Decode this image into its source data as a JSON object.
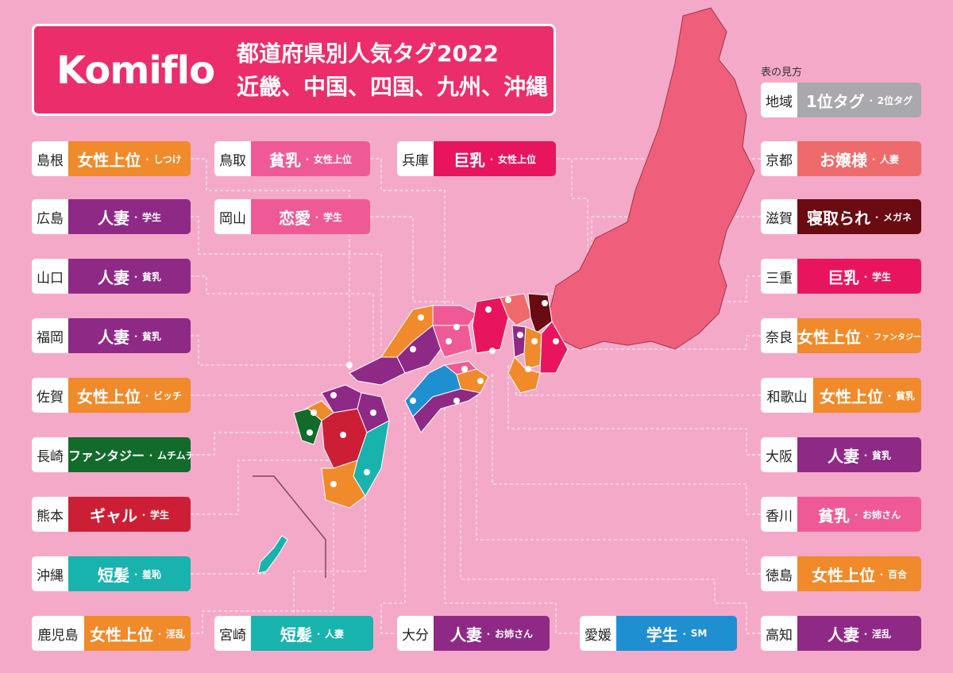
{
  "header": {
    "brand": "Komiflo",
    "title_line1": "都道府県別人気タグ2022",
    "title_line2": "近畿、中国、四国、九州、沖縄"
  },
  "legend": {
    "caption": "表の見方",
    "pref": "地域",
    "tag1": "1位タグ",
    "sep": "・",
    "tag2": "2位タグ",
    "color": "#a9a9ad"
  },
  "colors": {
    "background": "#f5a9c8",
    "header": "#ec2d6b",
    "honshu": "#ef5f7c",
    "orange": "#f08a2a",
    "purple": "#8e2a86",
    "pink": "#ef5a96",
    "magenta": "#e8155e",
    "red": "#cc1f35",
    "green": "#126b2a",
    "teal": "#19b3ad",
    "blue": "#1e8fd1",
    "maroon": "#6a0b12",
    "salmon": "#ef6a6a"
  },
  "prefectures": [
    {
      "name": "島根",
      "tag1": "女性上位",
      "sep": "・",
      "tag2": "しつけ",
      "color": "#f08a2a"
    },
    {
      "name": "広島",
      "tag1": "人妻",
      "sep": "・",
      "tag2": "学生",
      "color": "#8e2a86"
    },
    {
      "name": "山口",
      "tag1": "人妻",
      "sep": "・",
      "tag2": "貧乳",
      "color": "#8e2a86"
    },
    {
      "name": "福岡",
      "tag1": "人妻",
      "sep": "・",
      "tag2": "貧乳",
      "color": "#8e2a86"
    },
    {
      "name": "佐賀",
      "tag1": "女性上位",
      "sep": "・",
      "tag2": "ビッチ",
      "color": "#f08a2a"
    },
    {
      "name": "長崎",
      "tag1": "ファンタジー",
      "sep": "・",
      "tag2": "ムチムチ",
      "color": "#126b2a"
    },
    {
      "name": "熊本",
      "tag1": "ギャル",
      "sep": "・",
      "tag2": "学生",
      "color": "#cc1f35"
    },
    {
      "name": "沖縄",
      "tag1": "短髪",
      "sep": "・",
      "tag2": "羞恥",
      "color": "#19b3ad"
    },
    {
      "name": "鹿児島",
      "tag1": "女性上位",
      "sep": "・",
      "tag2": "淫乱",
      "color": "#f08a2a"
    },
    {
      "name": "鳥取",
      "tag1": "貧乳",
      "sep": "・",
      "tag2": "女性上位",
      "color": "#ef5a96"
    },
    {
      "name": "岡山",
      "tag1": "恋愛",
      "sep": "・",
      "tag2": "学生",
      "color": "#ef5a96"
    },
    {
      "name": "兵庫",
      "tag1": "巨乳",
      "sep": "・",
      "tag2": "女性上位",
      "color": "#e8155e"
    },
    {
      "name": "宮崎",
      "tag1": "短髪",
      "sep": "・",
      "tag2": "人妻",
      "color": "#19b3ad"
    },
    {
      "name": "大分",
      "tag1": "人妻",
      "sep": "・",
      "tag2": "お姉さん",
      "color": "#8e2a86"
    },
    {
      "name": "愛媛",
      "tag1": "学生",
      "sep": "・",
      "tag2": "SM",
      "color": "#1e8fd1"
    },
    {
      "name": "京都",
      "tag1": "お嬢様",
      "sep": "・",
      "tag2": "人妻",
      "color": "#ef6a6a"
    },
    {
      "name": "滋賀",
      "tag1": "寝取られ",
      "sep": "・",
      "tag2": "メガネ",
      "color": "#6a0b12"
    },
    {
      "name": "三重",
      "tag1": "巨乳",
      "sep": "・",
      "tag2": "学生",
      "color": "#e8155e"
    },
    {
      "name": "奈良",
      "tag1": "女性上位",
      "sep": "・",
      "tag2": "ファンタジー",
      "color": "#f08a2a"
    },
    {
      "name": "和歌山",
      "tag1": "女性上位",
      "sep": "・",
      "tag2": "貧乳",
      "color": "#f08a2a"
    },
    {
      "name": "大阪",
      "tag1": "人妻",
      "sep": "・",
      "tag2": "貧乳",
      "color": "#8e2a86"
    },
    {
      "name": "香川",
      "tag1": "貧乳",
      "sep": "・",
      "tag2": "お姉さん",
      "color": "#ef5a96"
    },
    {
      "name": "徳島",
      "tag1": "女性上位",
      "sep": "・",
      "tag2": "百合",
      "color": "#f08a2a"
    },
    {
      "name": "高知",
      "tag1": "人妻",
      "sep": "・",
      "tag2": "淫乱",
      "color": "#8e2a86"
    }
  ]
}
